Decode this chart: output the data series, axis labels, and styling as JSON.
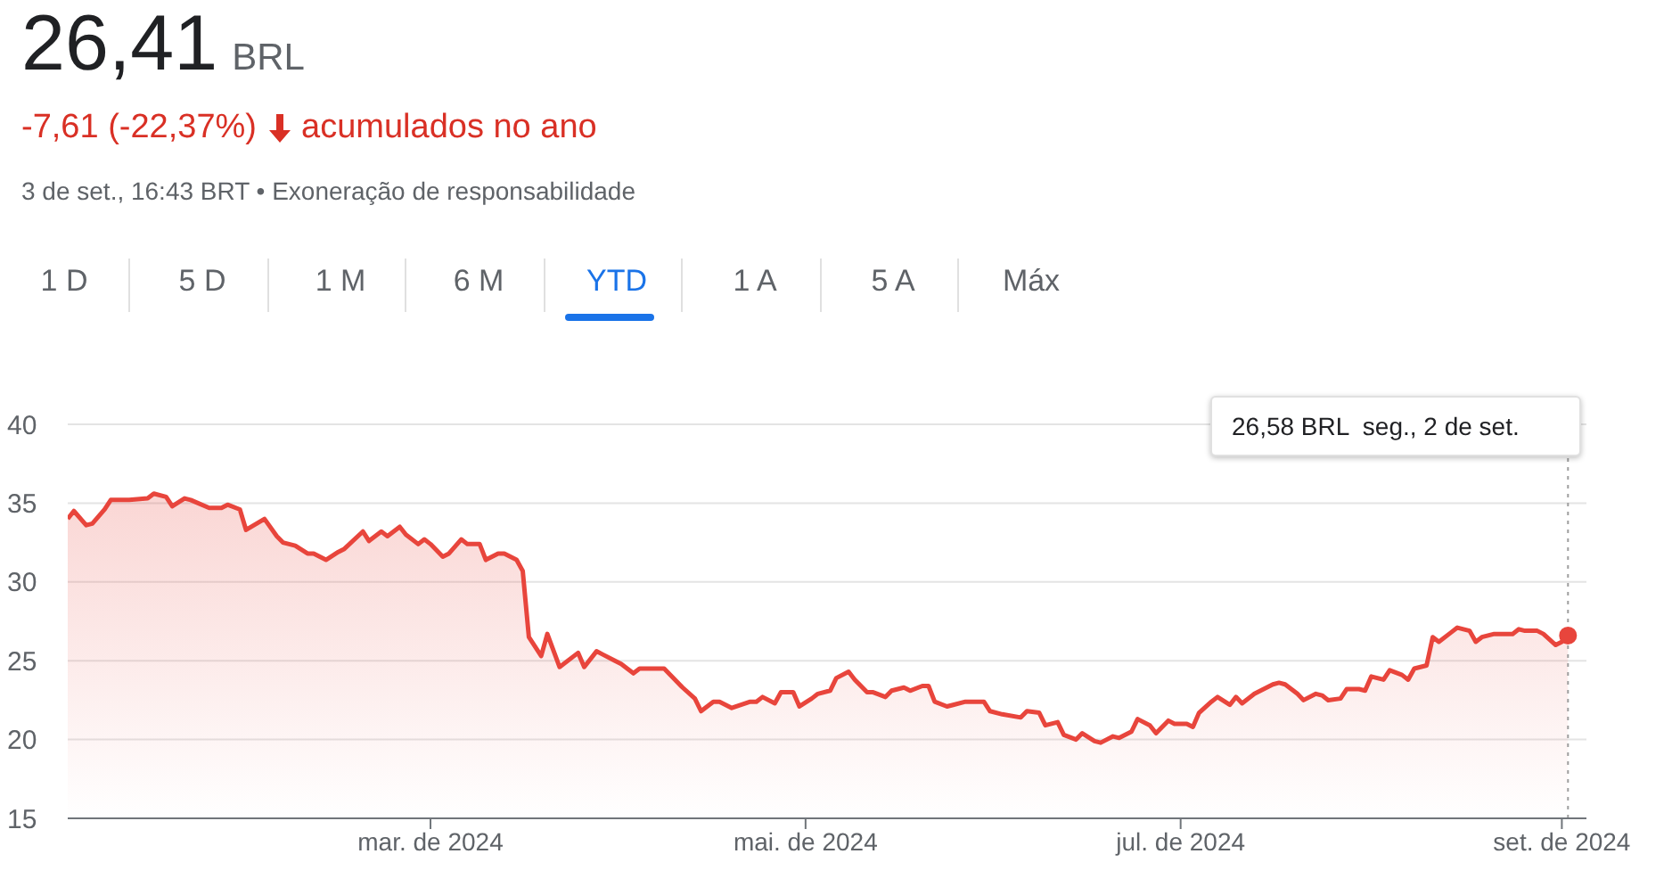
{
  "chart_data": {
    "type": "area",
    "title": "26,41",
    "subtitle": "BRL",
    "annotations": [
      "-7,61 (-22,37%)",
      "acumulados no ano",
      "3 de set., 16:43 BRT • Exoneração de responsabilidade",
      "1 D",
      "5 D",
      "1 M",
      "6 M",
      "YTD",
      "1 A",
      "5 A",
      "Máx",
      "26,58 BRL  seg., 2 de set."
    ],
    "x": [
      "2024-01-02",
      "2024-01-03",
      "2024-01-05",
      "2024-01-06",
      "2024-01-08",
      "2024-01-09",
      "2024-01-12",
      "2024-01-15",
      "2024-01-16",
      "2024-01-18",
      "2024-01-19",
      "2024-01-21",
      "2024-01-22",
      "2024-01-25",
      "2024-01-27",
      "2024-01-28",
      "2024-01-30",
      "2024-01-31",
      "2024-02-03",
      "2024-02-05",
      "2024-02-06",
      "2024-02-08",
      "2024-02-10",
      "2024-02-11",
      "2024-02-13",
      "2024-02-15",
      "2024-02-16",
      "2024-02-19",
      "2024-02-20",
      "2024-02-22",
      "2024-02-23",
      "2024-02-25",
      "2024-02-26",
      "2024-02-28",
      "2024-02-29",
      "2024-03-01",
      "2024-03-03",
      "2024-03-04",
      "2024-03-06",
      "2024-03-07",
      "2024-03-09",
      "2024-03-10",
      "2024-03-12",
      "2024-03-13",
      "2024-03-15",
      "2024-03-16",
      "2024-03-17",
      "2024-03-19",
      "2024-03-20",
      "2024-03-22",
      "2024-03-25",
      "2024-03-26",
      "2024-03-28",
      "2024-03-29",
      "2024-03-31",
      "2024-04-01",
      "2024-04-03",
      "2024-04-04",
      "2024-04-08",
      "2024-04-11",
      "2024-04-13",
      "2024-04-14",
      "2024-04-16",
      "2024-04-17",
      "2024-04-19",
      "2024-04-22",
      "2024-04-23",
      "2024-04-24",
      "2024-04-26",
      "2024-04-27",
      "2024-04-29",
      "2024-04-30",
      "2024-05-02",
      "2024-05-03",
      "2024-05-05",
      "2024-05-06",
      "2024-05-08",
      "2024-05-09",
      "2024-05-11",
      "2024-05-12",
      "2024-05-14",
      "2024-05-15",
      "2024-05-17",
      "2024-05-18",
      "2024-05-20",
      "2024-05-21",
      "2024-05-22",
      "2024-05-24",
      "2024-05-25",
      "2024-05-27",
      "2024-05-30",
      "2024-05-31",
      "2024-06-02",
      "2024-06-05",
      "2024-06-06",
      "2024-06-08",
      "2024-06-09",
      "2024-06-11",
      "2024-06-12",
      "2024-06-14",
      "2024-06-15",
      "2024-06-17",
      "2024-06-18",
      "2024-06-20",
      "2024-06-21",
      "2024-06-23",
      "2024-06-24",
      "2024-06-26",
      "2024-06-27",
      "2024-06-29",
      "2024-06-30",
      "2024-07-02",
      "2024-07-03",
      "2024-07-04",
      "2024-07-06",
      "2024-07-07",
      "2024-07-09",
      "2024-07-10",
      "2024-07-11",
      "2024-07-13",
      "2024-07-14",
      "2024-07-16",
      "2024-07-17",
      "2024-07-18",
      "2024-07-20",
      "2024-07-21",
      "2024-07-23",
      "2024-07-24",
      "2024-07-25",
      "2024-07-27",
      "2024-07-28",
      "2024-07-30",
      "2024-07-31",
      "2024-08-01",
      "2024-08-03",
      "2024-08-04",
      "2024-08-06",
      "2024-08-07",
      "2024-08-08",
      "2024-08-10",
      "2024-08-11",
      "2024-08-12",
      "2024-08-14",
      "2024-08-15",
      "2024-08-17",
      "2024-08-18",
      "2024-08-19",
      "2024-08-21",
      "2024-08-24",
      "2024-08-25",
      "2024-08-26",
      "2024-08-28",
      "2024-08-29",
      "2024-08-31",
      "2024-09-01",
      "2024-09-02"
    ],
    "series": [
      {
        "color": "#e8453c",
        "values": [
          34.0,
          34.5,
          33.6,
          33.7,
          34.6,
          35.2,
          35.2,
          35.3,
          35.6,
          35.4,
          34.8,
          35.3,
          35.2,
          34.7,
          34.7,
          34.9,
          34.6,
          33.3,
          34.0,
          32.9,
          32.5,
          32.3,
          31.8,
          31.8,
          31.4,
          31.9,
          32.1,
          33.2,
          32.6,
          33.2,
          32.9,
          33.5,
          33.0,
          32.4,
          32.7,
          32.4,
          31.6,
          31.8,
          32.7,
          32.4,
          32.4,
          31.4,
          31.8,
          31.8,
          31.4,
          30.7,
          26.5,
          25.3,
          26.7,
          24.6,
          25.5,
          24.6,
          25.6,
          25.4,
          25.0,
          24.8,
          24.2,
          24.5,
          24.5,
          23.3,
          22.6,
          21.8,
          22.4,
          22.4,
          22.0,
          22.4,
          22.4,
          22.7,
          22.3,
          23.0,
          23.0,
          22.1,
          22.6,
          22.9,
          23.1,
          23.9,
          24.3,
          23.8,
          23.0,
          23.0,
          22.7,
          23.1,
          23.3,
          23.1,
          23.4,
          23.4,
          22.4,
          22.1,
          22.2,
          22.4,
          22.4,
          21.8,
          21.6,
          21.4,
          21.8,
          21.7,
          20.9,
          21.1,
          20.3,
          20.0,
          20.4,
          19.9,
          19.8,
          20.2,
          20.1,
          20.5,
          21.3,
          20.9,
          20.4,
          21.2,
          21.0,
          21.0,
          20.8,
          21.7,
          22.4,
          22.7,
          22.2,
          22.7,
          22.3,
          22.9,
          23.1,
          23.5,
          23.6,
          23.5,
          22.9,
          22.5,
          22.9,
          22.8,
          22.5,
          22.6,
          23.2,
          23.2,
          23.1,
          24.0,
          23.8,
          24.4,
          24.1,
          23.8,
          24.5,
          24.7,
          26.5,
          26.2,
          26.8,
          27.1,
          26.9,
          26.2,
          26.5,
          26.7,
          26.7,
          27.0,
          26.9,
          26.9,
          26.7,
          26.0,
          26.2,
          26.6
        ]
      },
      {
        "type": "scatter",
        "x": [
          "2024-09-02"
        ],
        "color": "#e8453c",
        "marker": "circle",
        "values": [
          26.6
        ]
      }
    ],
    "xlim": [
      "2024-01-02",
      "2024-09-05"
    ],
    "xticks": [
      {
        "value": "2024-03-01",
        "label": "mar. de 2024"
      },
      {
        "value": "2024-05-01",
        "label": "mai. de 2024"
      },
      {
        "value": "2024-07-01",
        "label": "jul. de 2024"
      },
      {
        "value": "2024-09-01",
        "label": "set. de 2024"
      }
    ],
    "ylim": [
      15,
      40
    ],
    "yticks": [
      15,
      20,
      25,
      30,
      35,
      40
    ],
    "grid": "y",
    "ref_lines": [
      {
        "axis": "x",
        "value": "2024-09-02",
        "color": "#9e9e9e",
        "line_style": "dotted"
      }
    ]
  }
}
